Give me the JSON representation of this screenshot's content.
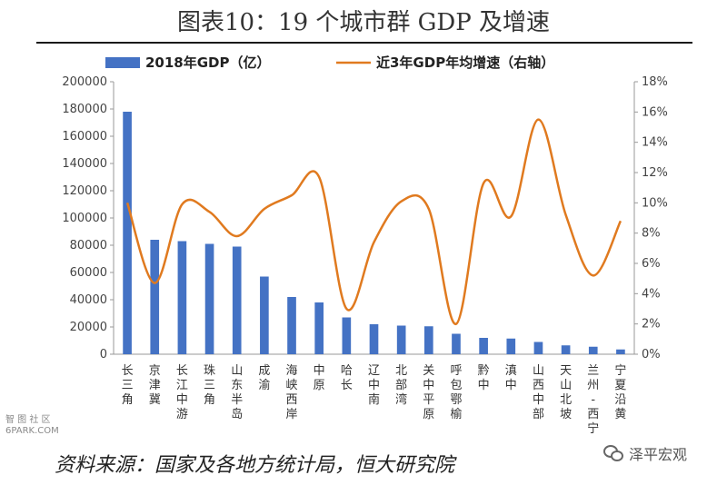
{
  "title": "图表10：19 个城市群 GDP 及增速",
  "source": "资料来源：国家及各地方统计局，恒大研究院",
  "watermark": {
    "left_line1": "智 图 社 区",
    "left_line2": "6PARK.COM",
    "right_text": "泽平宏观",
    "right_icon": "wechat-icon"
  },
  "colors": {
    "bar": "#4472c4",
    "line": "#e07a1f",
    "axis": "#999999"
  },
  "chart_data": {
    "type": "bar",
    "categories": [
      "长三角",
      "京津冀",
      "长江中游",
      "珠三角",
      "山东半岛",
      "成渝",
      "海峡西岸",
      "中原",
      "哈长",
      "辽中南",
      "北部湾",
      "关中平原",
      "呼包鄂榆",
      "黔中",
      "滇中",
      "山西中部",
      "天山北坡",
      "兰州-西宁",
      "宁夏沿黄"
    ],
    "series": [
      {
        "name": "2018年GDP（亿）",
        "type": "bar",
        "axis": "left",
        "values": [
          178000,
          84000,
          83000,
          81000,
          79000,
          57000,
          42000,
          38000,
          27000,
          22000,
          21000,
          20500,
          15000,
          12000,
          11500,
          9000,
          6500,
          5500,
          3500
        ]
      },
      {
        "name": "近3年GDP年均增速（右轴）",
        "type": "line",
        "axis": "right",
        "values": [
          10.0,
          4.7,
          9.9,
          9.4,
          7.8,
          9.6,
          10.5,
          11.7,
          3.0,
          7.4,
          10.1,
          9.6,
          2.0,
          11.3,
          9.1,
          15.5,
          9.2,
          5.2,
          8.8
        ]
      }
    ],
    "ylim_left": [
      0,
      200000
    ],
    "yticks_left": [
      "0",
      "20000",
      "40000",
      "60000",
      "80000",
      "100000",
      "120000",
      "140000",
      "160000",
      "180000",
      "200000"
    ],
    "ylim_right": [
      0,
      18
    ],
    "yticks_right": [
      "0%",
      "2%",
      "4%",
      "6%",
      "8%",
      "10%",
      "12%",
      "14%",
      "16%",
      "18%"
    ],
    "grid": false,
    "legend_position": "top"
  }
}
